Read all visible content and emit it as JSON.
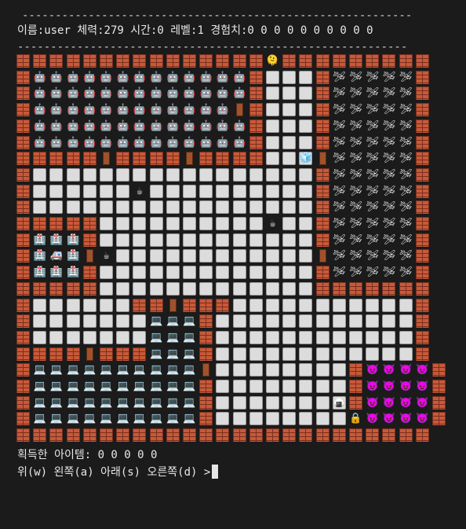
{
  "header": {
    "dash_top": "-----------------------------------------------------------",
    "status": "이름:user 체력:279 시간:0 레벨:1 경험치:0 0 0 0 0 0 0 0 0 0",
    "dash_bottom": "-----------------------------------------------------------"
  },
  "footer": {
    "items": "획득한 아이템: 0 0 0 0 0",
    "prompt": "위(w) 왼쪽(a) 아래(s) 오른쪽(d) >"
  },
  "map": {
    "legend": {
      "W": "brick-wall",
      "F": "floor-tile",
      "D": "door",
      "R": "robot-icon",
      "A": "airplane-icon",
      "H": "hospital-icon",
      "M": "ambulance-icon",
      "L": "laptop-icon",
      "V": "devil-icon",
      "P": "player-icon",
      "C": "coffee-icon",
      "I": "ice-cube-icon",
      "O": "rice-ball-icon",
      "K": "lock-icon",
      ".": "empty"
    },
    "glyphs": {
      "R": "🤖",
      "A": "🛩",
      "H": "🏥",
      "M": "🚑",
      "L": "💻",
      "V": "😈",
      "P": "🫠",
      "C": "☕",
      "I": "🧊",
      "O": "🍙",
      "K": "🔒"
    },
    "rows": [
      "WWWWWWWWWWWWWWWPWWWWWWWWW",
      "WRRRRRRRRRRRRRWFFFWAAAAAW",
      "WRRRRRRRRRRRRRWFFFWAAAAAW",
      "WRRRRRRRRRRRRDWFFFWAAAAAW",
      "WRRRRRRRRRRRRRWFFFWAAAAAW",
      "WRRRRRRRRRRRRRWFFFWAAAAAW",
      "WWWWWDWWWWDWWWWFFIDAAAAAW",
      "WFFFFFFFFFFFFFFFFFWAAAAAW",
      "WFFFFFFCFFFFFFFFFFWAAAAAW",
      "WFFFFFFFFFFFFFFFFFWAAAAAW",
      "WWWWWFFFFFFFFFFCFFWAAAAAW",
      "WHHHWFFFFFFFFFFFFFWAAAAAW",
      "WHMHDCFFFFFFFFFFFFDAAAAAW",
      "WHHHWFFFFFFFFFFFFFWAAAAAW",
      "WWWWWFFFFFFFFFFFFFWWWWWWW",
      "WFFFFFFWWDWWWFFFFFFFFFFFW",
      "WFFFFFFFLLLWFFFFFFFFFFFFW",
      "WFFFFFFFLLLWFFFFFFFFFFFFW",
      "WWWWDWWWLLLWFFFFFFFFFFFFW",
      "WLLLLLLLLLLDFFFFFFFFWVVVVW",
      "WLLLLLLLLLLWFFFFFFFFWVVVVW",
      "WLLLLLLLLLLWFFFFFFFOWVVVVW",
      "WLLLLLLLLLLWFFFFFFFFKVVVVW",
      "WWWWWWWWWWWWWWWWWWWWWWWWW"
    ]
  }
}
